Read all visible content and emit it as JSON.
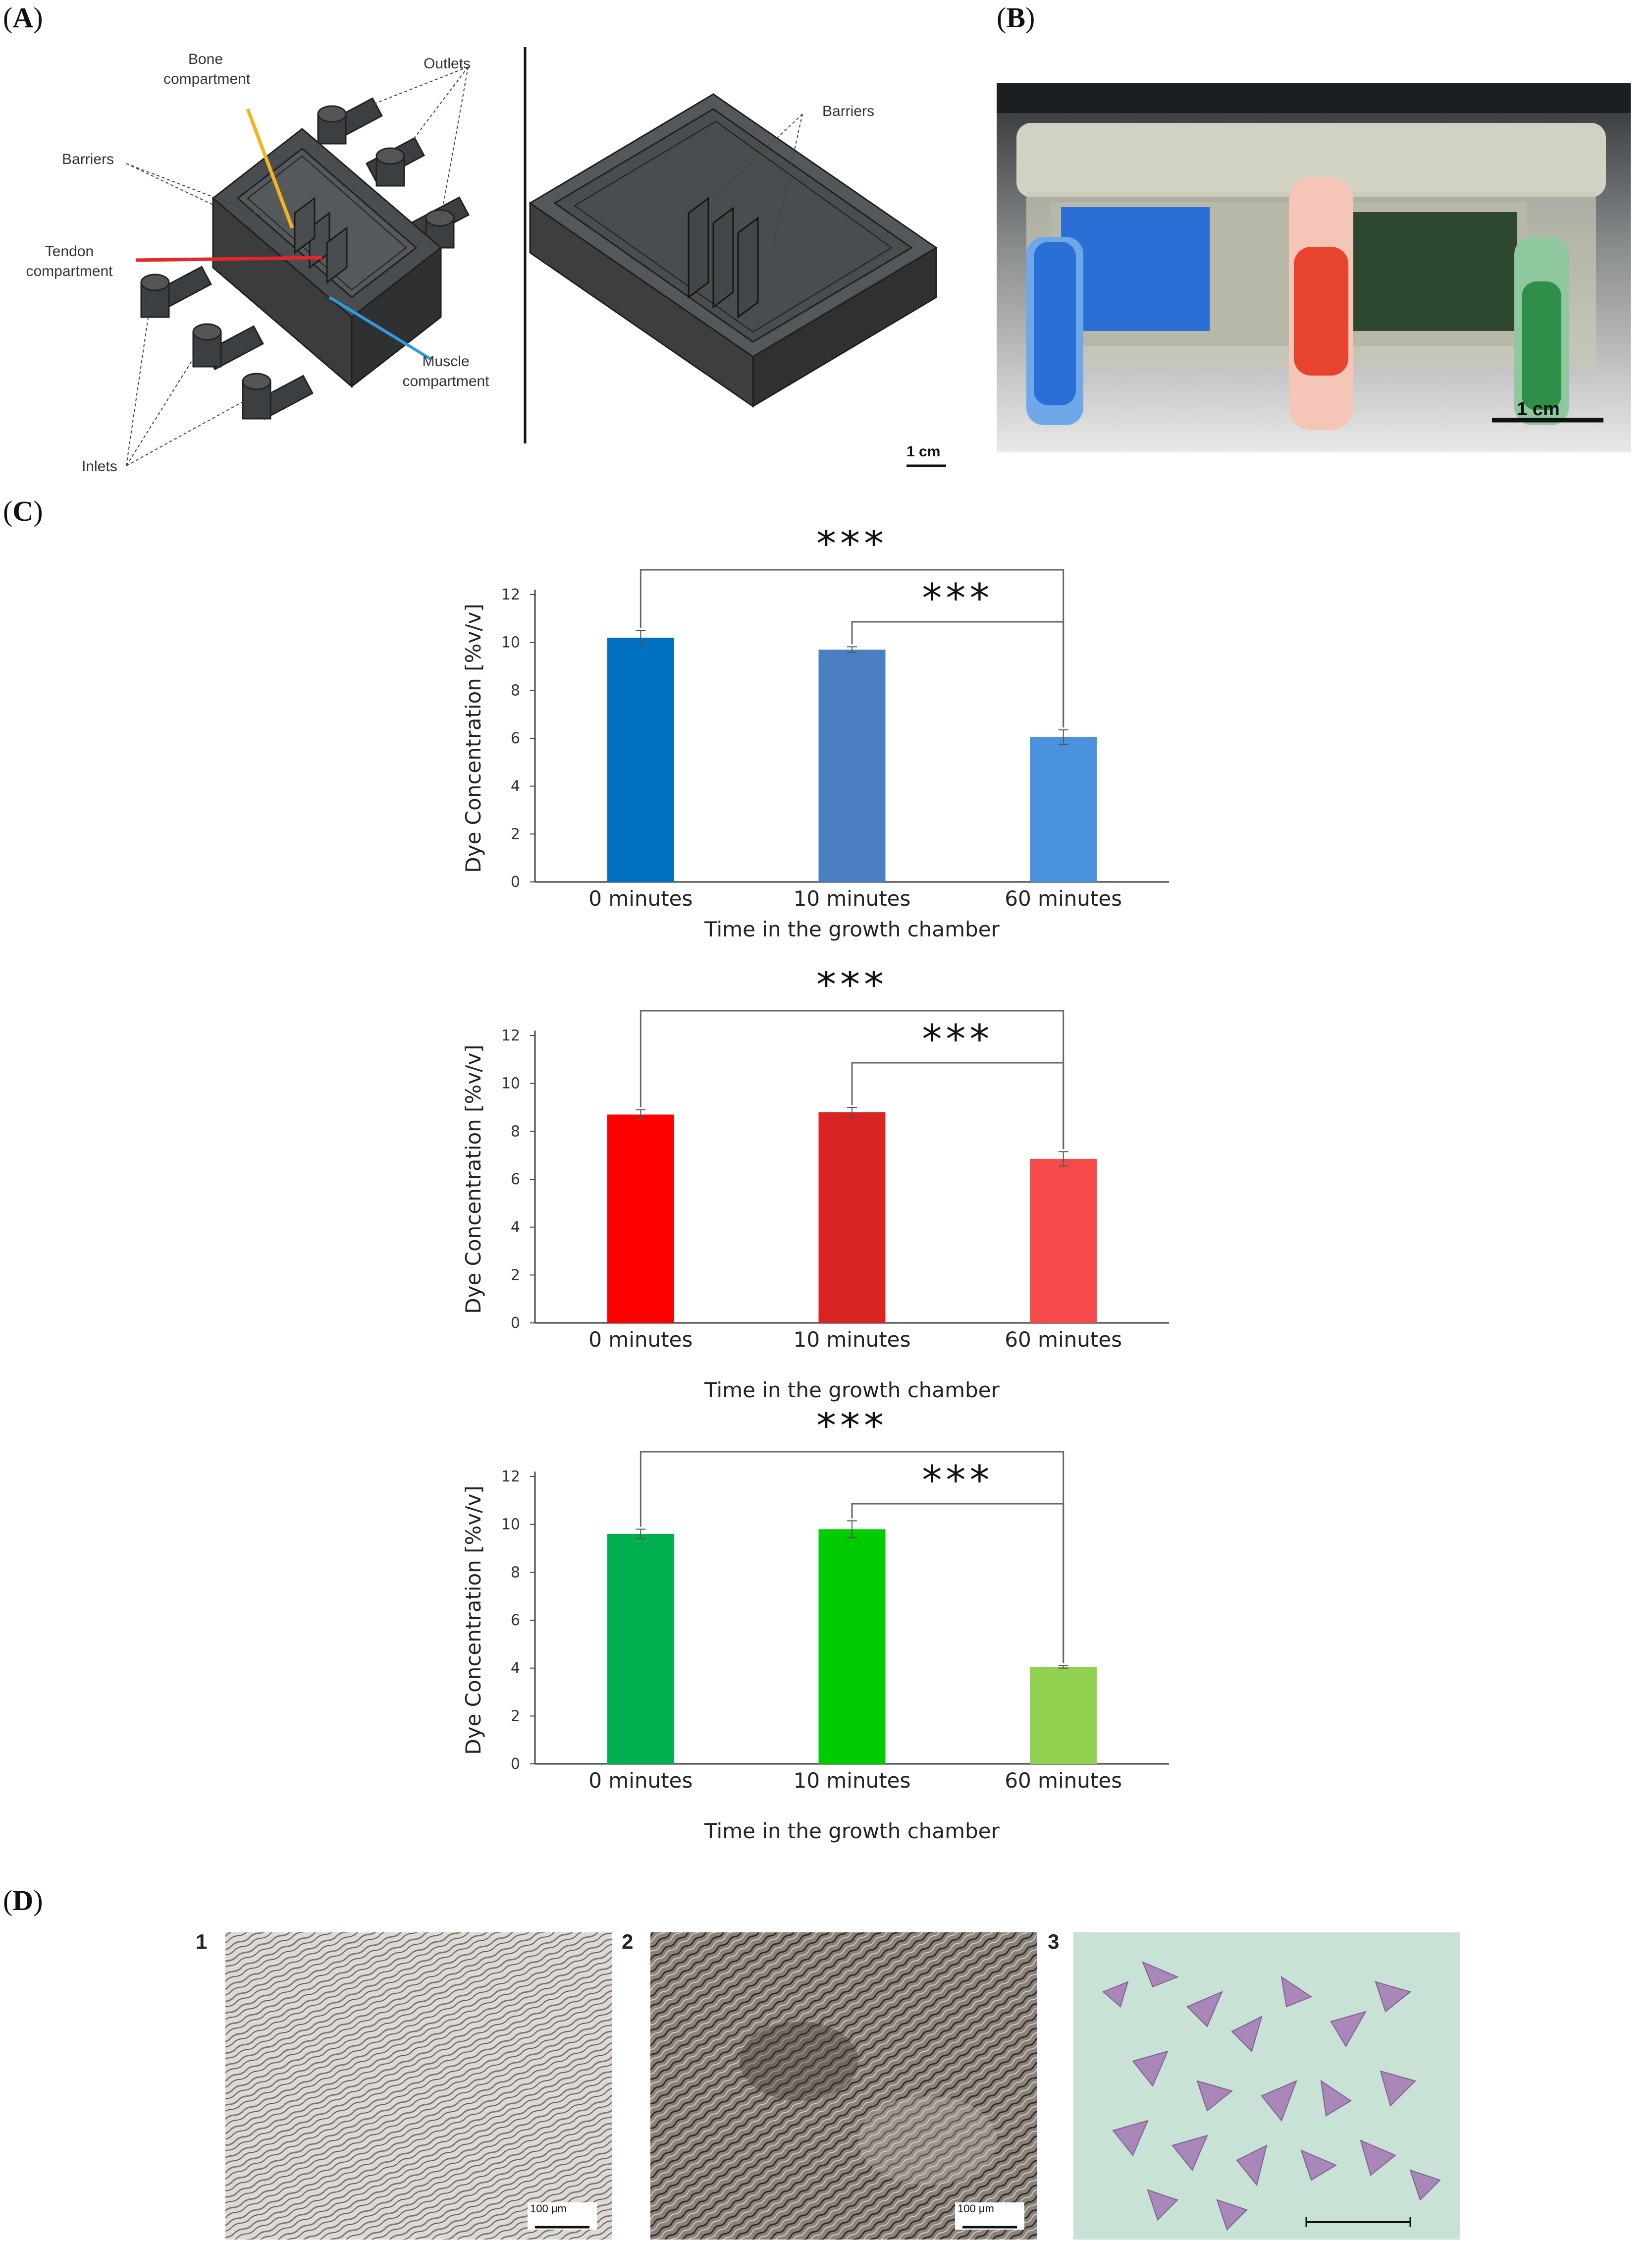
{
  "figure": {
    "panel_labels": [
      "A",
      "B",
      "C",
      "D"
    ],
    "panel_a": {
      "labels": {
        "bone": "Bone\ncompartment",
        "outlets": "Outlets",
        "barriers_left": "Barriers",
        "tendon": "Tendon\ncompartment",
        "muscle": "Muscle\ncompartment",
        "inlets": "Inlets",
        "barriers_right": "Barriers",
        "scale": "1 cm"
      },
      "colors": {
        "bone_arrow": "#f2b51c",
        "tendon_arrow": "#e8262a",
        "muscle_arrow": "#2d9be0"
      }
    },
    "panel_b": {
      "scale": "1 cm",
      "dye_colors": [
        "#2a6fd6",
        "#e8432c",
        "#2f8f4a"
      ]
    },
    "panel_d": {
      "items": [
        {
          "num": "1",
          "scale": "100 μm"
        },
        {
          "num": "2",
          "scale": "100 μm"
        },
        {
          "num": "3",
          "scale": ""
        }
      ]
    }
  },
  "chart_data": [
    {
      "type": "bar",
      "categories": [
        "0 minutes",
        "10 minutes",
        "60 minutes"
      ],
      "values": [
        10.2,
        9.7,
        6.05
      ],
      "errors": [
        0.3,
        0.12,
        0.3
      ],
      "colors": [
        "#0070c0",
        "#4a7fc1",
        "#4a92de"
      ],
      "xlabel": "Time in the growth chamber",
      "ylabel": "Dye Concentration [%v/v]",
      "ylim": [
        0,
        12
      ],
      "yticks": [
        "0",
        "2",
        "4",
        "6",
        "8",
        "10",
        "12"
      ],
      "significance": [
        {
          "from": 0,
          "to": 2,
          "label": "***"
        },
        {
          "from": 1,
          "to": 2,
          "label": "***"
        }
      ]
    },
    {
      "type": "bar",
      "categories": [
        "0 minutes",
        "10 minutes",
        "60 minutes"
      ],
      "values": [
        8.7,
        8.8,
        6.85
      ],
      "errors": [
        0.2,
        0.2,
        0.3
      ],
      "colors": [
        "#ff0000",
        "#d92424",
        "#f44a4a"
      ],
      "xlabel": "Time in the growth chamber",
      "ylabel": "Dye Concentration [%v/v]",
      "ylim": [
        0,
        12
      ],
      "yticks": [
        "0",
        "2",
        "4",
        "6",
        "8",
        "10",
        "12"
      ],
      "significance": [
        {
          "from": 0,
          "to": 2,
          "label": "***"
        },
        {
          "from": 1,
          "to": 2,
          "label": "***"
        }
      ]
    },
    {
      "type": "bar",
      "categories": [
        "0 minutes",
        "10 minutes",
        "60 minutes"
      ],
      "values": [
        9.6,
        9.8,
        4.05
      ],
      "errors": [
        0.2,
        0.35,
        0.05
      ],
      "colors": [
        "#00b050",
        "#00cc00",
        "#92d050"
      ],
      "xlabel": "Time in the growth chamber",
      "ylabel": "Dye Concentration [%v/v]",
      "ylim": [
        0,
        12
      ],
      "yticks": [
        "0",
        "2",
        "4",
        "6",
        "8",
        "10",
        "12"
      ],
      "significance": [
        {
          "from": 0,
          "to": 2,
          "label": "***"
        },
        {
          "from": 1,
          "to": 2,
          "label": "***"
        }
      ]
    }
  ]
}
